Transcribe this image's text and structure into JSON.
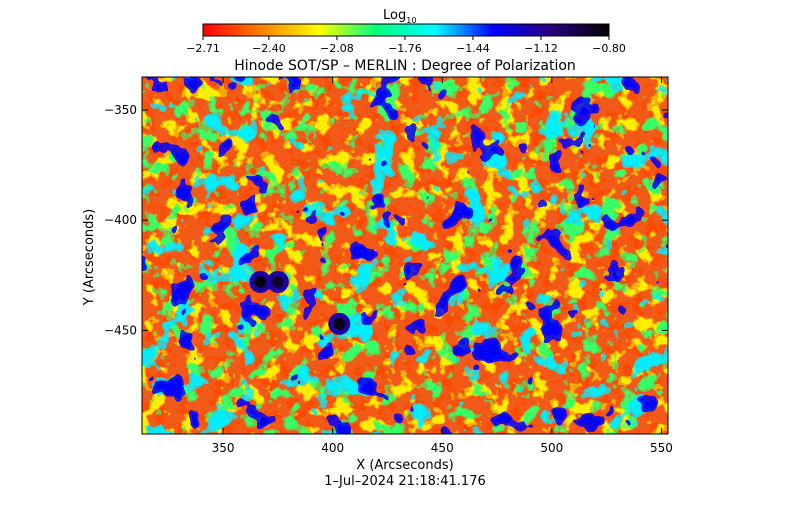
{
  "chart_data": {
    "type": "heatmap",
    "title": "Hinode SOT/SP – MERLIN : Degree of Polarization",
    "xlabel": "X (Arcseconds)",
    "ylabel": "Y (Arcseconds)",
    "timestamp": "1–Jul–2024 21:18:41.176",
    "xlim": [
      313,
      553
    ],
    "ylim": [
      -497,
      -335
    ],
    "x_ticks": [
      350,
      400,
      450,
      500,
      550
    ],
    "x_tick_labels": [
      "350",
      "400",
      "450",
      "500",
      "550"
    ],
    "y_ticks": [
      -350,
      -400,
      -450
    ],
    "y_tick_labels": [
      "−350",
      "−400",
      "−450"
    ],
    "colorbar": {
      "label_base": "Log",
      "label_sub": "10",
      "min": -2.71,
      "max": -0.8,
      "ticks": [
        -2.71,
        -2.4,
        -2.08,
        -1.76,
        -1.44,
        -1.12,
        -0.8
      ],
      "tick_labels": [
        "−2.71",
        "−2.40",
        "−2.08",
        "−1.76",
        "−1.44",
        "−1.12",
        "−0.80"
      ],
      "colormap": [
        "#ff0000",
        "#ff8000",
        "#ffff00",
        "#00ff80",
        "#00ffff",
        "#0000ff",
        "#2a0080",
        "#000000"
      ]
    },
    "features": [
      {
        "x": 367,
        "y": -428,
        "value": -0.85
      },
      {
        "x": 375,
        "y": -428,
        "value": -0.9
      },
      {
        "x": 403,
        "y": -447,
        "value": -0.85
      }
    ]
  }
}
